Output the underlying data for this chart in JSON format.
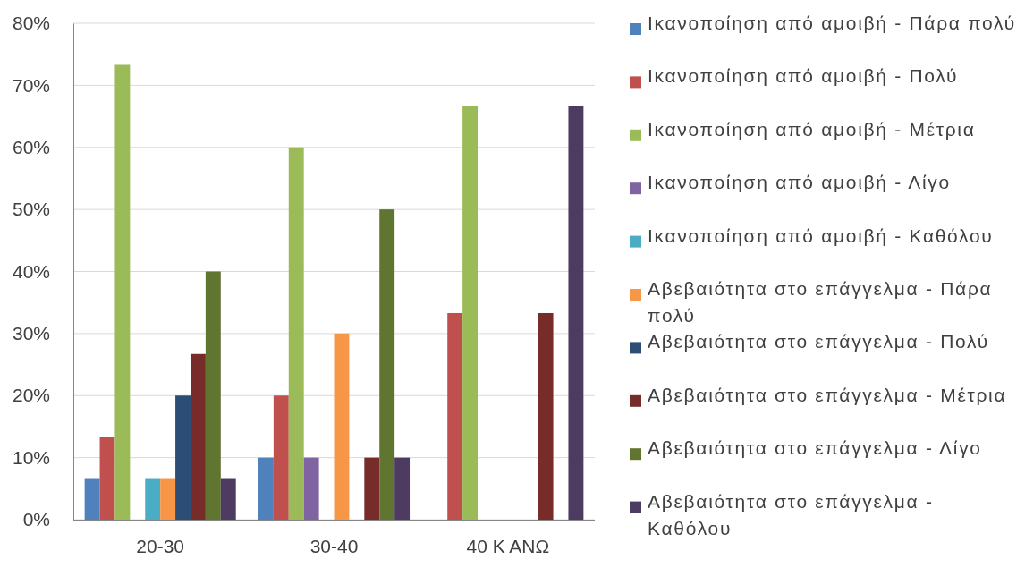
{
  "chart_data": {
    "type": "bar",
    "categories": [
      "20-30",
      "30-40",
      "40 Κ ΑΝΩ"
    ],
    "series": [
      {
        "name": "Ικανοποίηση από αμοιβή - Πάρα πολύ",
        "color": "#4f81bd",
        "values": [
          6.7,
          10,
          0
        ]
      },
      {
        "name": "Ικανοποίηση από αμοιβή - Πολύ",
        "color": "#c0504d",
        "values": [
          13.3,
          20,
          33.3
        ]
      },
      {
        "name": "Ικανοποίηση από αμοιβή - Μέτρια",
        "color": "#9bbb59",
        "values": [
          73.3,
          60,
          66.7
        ]
      },
      {
        "name": "Ικανοποίηση από αμοιβή - Λίγο",
        "color": "#8064a2",
        "values": [
          0,
          10,
          0
        ]
      },
      {
        "name": "Ικανοποίηση από αμοιβή - Καθόλου",
        "color": "#4bacc6",
        "values": [
          6.7,
          0,
          0
        ]
      },
      {
        "name": "Αβεβαιότητα στο επάγγελμα - Πάρα πολύ",
        "color": "#f79646",
        "values": [
          6.7,
          30,
          0
        ]
      },
      {
        "name": "Αβεβαιότητα στο επάγγελμα - Πολύ",
        "color": "#2c4d75",
        "values": [
          20,
          0,
          0
        ]
      },
      {
        "name": "Αβεβαιότητα στο επάγγελμα - Μέτρια",
        "color": "#772c2a",
        "values": [
          26.7,
          10,
          33.3
        ]
      },
      {
        "name": "Αβεβαιότητα στο επάγγελμα - Λίγο",
        "color": "#5f7530",
        "values": [
          40,
          50,
          0
        ]
      },
      {
        "name": "Αβεβαιότητα στο επάγγελμα - Καθόλου",
        "color": "#4d3b62",
        "values": [
          6.7,
          10,
          66.7
        ]
      }
    ],
    "ylim": [
      0,
      80
    ],
    "yticks": [
      {
        "value": 0,
        "label": "0%"
      },
      {
        "value": 10,
        "label": "10%"
      },
      {
        "value": 20,
        "label": "20%"
      },
      {
        "value": 30,
        "label": "30%"
      },
      {
        "value": 40,
        "label": "40%"
      },
      {
        "value": 50,
        "label": "50%"
      },
      {
        "value": 60,
        "label": "60%"
      },
      {
        "value": 70,
        "label": "70%"
      },
      {
        "value": 80,
        "label": "80%"
      }
    ],
    "grid": "y",
    "legend": "right"
  }
}
